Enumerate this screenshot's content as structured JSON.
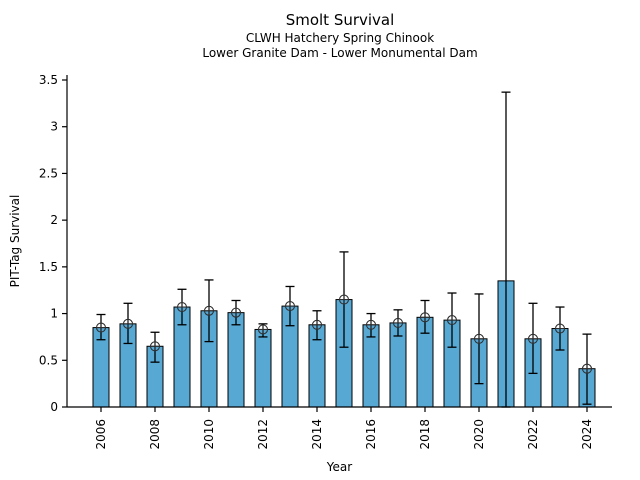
{
  "chart_data": {
    "type": "bar",
    "title": "Smolt Survival",
    "subtitle1": "CLWH Hatchery Spring Chinook",
    "subtitle2": "Lower Granite Dam - Lower Monumental Dam",
    "xlabel": "Year",
    "ylabel": "PIT-Tag Survival",
    "ylim": [
      0,
      3.55
    ],
    "ytick_values": [
      0,
      0.5,
      1,
      1.5,
      2,
      2.5,
      3,
      3.5
    ],
    "ytick_labels": [
      "0",
      "0.5",
      "1",
      "1.5",
      "2",
      "2.5",
      "3",
      "3.5"
    ],
    "xtick_labels": [
      "2006",
      "2008",
      "2010",
      "2012",
      "2014",
      "2016",
      "2018",
      "2020",
      "2022",
      "2024"
    ],
    "grid": false,
    "legend": false,
    "bar_color": "#58A8D4",
    "bar_edge_color": "#000000",
    "error_bar_color": "#000000",
    "marker_color": "#2F2F2F",
    "series": [
      {
        "year": 2006,
        "value": 0.85,
        "ci_low": 0.72,
        "ci_high": 0.99,
        "marker": true
      },
      {
        "year": 2007,
        "value": 0.89,
        "ci_low": 0.68,
        "ci_high": 1.11,
        "marker": true
      },
      {
        "year": 2008,
        "value": 0.65,
        "ci_low": 0.48,
        "ci_high": 0.8,
        "marker": true
      },
      {
        "year": 2009,
        "value": 1.07,
        "ci_low": 0.88,
        "ci_high": 1.26,
        "marker": true
      },
      {
        "year": 2010,
        "value": 1.03,
        "ci_low": 0.7,
        "ci_high": 1.36,
        "marker": true
      },
      {
        "year": 2011,
        "value": 1.01,
        "ci_low": 0.88,
        "ci_high": 1.14,
        "marker": true
      },
      {
        "year": 2012,
        "value": 0.83,
        "ci_low": 0.75,
        "ci_high": 0.89,
        "marker": true
      },
      {
        "year": 2013,
        "value": 1.08,
        "ci_low": 0.87,
        "ci_high": 1.29,
        "marker": true
      },
      {
        "year": 2014,
        "value": 0.88,
        "ci_low": 0.72,
        "ci_high": 1.03,
        "marker": true
      },
      {
        "year": 2015,
        "value": 1.15,
        "ci_low": 0.64,
        "ci_high": 1.66,
        "marker": true
      },
      {
        "year": 2016,
        "value": 0.88,
        "ci_low": 0.75,
        "ci_high": 1.0,
        "marker": true
      },
      {
        "year": 2017,
        "value": 0.9,
        "ci_low": 0.76,
        "ci_high": 1.04,
        "marker": true
      },
      {
        "year": 2018,
        "value": 0.96,
        "ci_low": 0.79,
        "ci_high": 1.14,
        "marker": true
      },
      {
        "year": 2019,
        "value": 0.93,
        "ci_low": 0.64,
        "ci_high": 1.22,
        "marker": true
      },
      {
        "year": 2020,
        "value": 0.73,
        "ci_low": 0.25,
        "ci_high": 1.21,
        "marker": true
      },
      {
        "year": 2021,
        "value": 1.35,
        "ci_low": 0.0,
        "ci_high": 3.37,
        "marker": false
      },
      {
        "year": 2022,
        "value": 0.73,
        "ci_low": 0.36,
        "ci_high": 1.11,
        "marker": true
      },
      {
        "year": 2023,
        "value": 0.84,
        "ci_low": 0.61,
        "ci_high": 1.07,
        "marker": true
      },
      {
        "year": 2024,
        "value": 0.41,
        "ci_low": 0.03,
        "ci_high": 0.78,
        "marker": true
      }
    ]
  }
}
